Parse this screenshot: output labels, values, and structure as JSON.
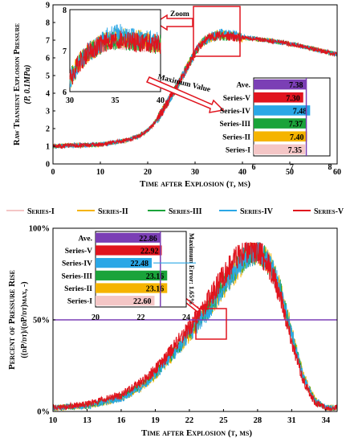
{
  "colors": {
    "series1": "#f4c6c6",
    "series2": "#f5b400",
    "series3": "#1aa33a",
    "series4": "#2aa7e6",
    "series5": "#e0141e",
    "ave": "#7b3fb5",
    "purple_line": "#7b3fb5"
  },
  "legend": {
    "items": [
      {
        "label": "Series-I",
        "color": "#f4c6c6"
      },
      {
        "label": "Series-II",
        "color": "#f5b400"
      },
      {
        "label": "Series-III",
        "color": "#1aa33a"
      },
      {
        "label": "Series-IV",
        "color": "#2aa7e6"
      },
      {
        "label": "Series-V",
        "color": "#e0141e"
      }
    ]
  },
  "chart_data": [
    {
      "type": "line",
      "title": "",
      "xlabel": "Time after Explosion (t, ms)",
      "ylabel_line1": "Raw Transient Explosion Pressure",
      "ylabel_line2": "(P, 0.1MPa)",
      "xlim": [
        0,
        60
      ],
      "ylim": [
        0,
        9
      ],
      "xticks": [
        "0",
        "10",
        "20",
        "30",
        "40",
        "50",
        "60"
      ],
      "yticks": [
        "0",
        "1",
        "2",
        "3",
        "4",
        "5",
        "6",
        "7",
        "8",
        "9"
      ],
      "x": [
        0,
        5,
        10,
        15,
        18,
        20,
        22,
        24,
        26,
        28,
        29,
        30,
        31,
        32,
        33,
        34,
        35,
        36,
        38,
        40,
        45,
        50,
        55,
        60
      ],
      "series": [
        {
          "values": [
            1.0,
            1.05,
            1.1,
            1.3,
            1.55,
            1.9,
            2.5,
            3.4,
            4.3,
            5.3,
            5.8,
            6.3,
            6.7,
            6.95,
            7.1,
            7.2,
            7.25,
            7.25,
            7.2,
            7.15,
            7.0,
            6.8,
            6.5,
            6.2
          ]
        },
        {
          "values": [
            1.0,
            1.05,
            1.1,
            1.3,
            1.55,
            1.9,
            2.5,
            3.4,
            4.3,
            5.3,
            5.8,
            6.3,
            6.7,
            6.95,
            7.1,
            7.25,
            7.3,
            7.3,
            7.25,
            7.15,
            7.0,
            6.8,
            6.5,
            6.2
          ]
        },
        {
          "values": [
            1.0,
            1.05,
            1.1,
            1.3,
            1.55,
            1.9,
            2.5,
            3.4,
            4.3,
            5.3,
            5.8,
            6.3,
            6.7,
            6.95,
            7.1,
            7.2,
            7.25,
            7.25,
            7.2,
            7.15,
            7.0,
            6.8,
            6.5,
            6.2
          ]
        },
        {
          "values": [
            1.0,
            1.05,
            1.1,
            1.3,
            1.55,
            1.9,
            2.5,
            3.4,
            4.3,
            5.3,
            5.8,
            6.3,
            6.7,
            6.95,
            7.1,
            7.3,
            7.4,
            7.4,
            7.3,
            7.2,
            7.0,
            6.8,
            6.5,
            6.2
          ]
        },
        {
          "values": [
            1.0,
            1.05,
            1.1,
            1.3,
            1.55,
            1.9,
            2.5,
            3.4,
            4.3,
            5.3,
            5.8,
            6.3,
            6.7,
            6.95,
            7.1,
            7.2,
            7.25,
            7.25,
            7.2,
            7.15,
            7.0,
            6.8,
            6.5,
            6.2
          ]
        }
      ],
      "annotations": {
        "zoom_label": "Zoom",
        "max_label": "Maximum Value"
      },
      "inset_zoom": {
        "xlim": [
          30,
          40
        ],
        "ylim": [
          6,
          8
        ],
        "xticks": [
          "30",
          "35",
          "40"
        ],
        "yticks": [
          "6",
          "7",
          "8"
        ]
      },
      "inset_bars": {
        "type": "bar",
        "xlim": [
          6,
          8
        ],
        "xticks": [
          "6",
          "7",
          "8"
        ],
        "categories": [
          "Ave.",
          "Series-V",
          "Series-IV",
          "Series-III",
          "Series-II",
          "Series-I"
        ],
        "values": [
          7.38,
          7.3,
          7.48,
          7.37,
          7.4,
          7.35
        ],
        "labels": [
          "7.38",
          "7.30",
          "7.48",
          "7.37",
          "7.40",
          "7.35"
        ]
      }
    },
    {
      "type": "line",
      "title": "",
      "xlabel": "Time after Explosion (t, ms)",
      "ylabel_line1": "Percent of Pressure Rise",
      "ylabel_line2": "((dP/dt)/(dP/dt)max, -)",
      "xlim": [
        10,
        35
      ],
      "ylim": [
        0,
        100
      ],
      "xticks": [
        "10",
        "13",
        "16",
        "19",
        "22",
        "25",
        "28",
        "31",
        "34"
      ],
      "yticks": [
        "0%",
        "50%",
        "100%"
      ],
      "reference_line_y": 50,
      "x": [
        10,
        13,
        16,
        18,
        19,
        20,
        21,
        22,
        23,
        24,
        25,
        26,
        27,
        28,
        29,
        30,
        31,
        32,
        33,
        34
      ],
      "series": [
        {
          "values": [
            2,
            3,
            8,
            16,
            22,
            29,
            36,
            44,
            52,
            60,
            70,
            80,
            86,
            88,
            80,
            65,
            40,
            18,
            6,
            2
          ]
        },
        {
          "values": [
            2,
            3,
            7,
            14,
            20,
            27,
            34,
            42,
            50,
            58,
            66,
            76,
            84,
            88,
            82,
            68,
            44,
            20,
            7,
            2
          ]
        },
        {
          "values": [
            2,
            3,
            8,
            15,
            21,
            28,
            35,
            43,
            51,
            59,
            68,
            78,
            85,
            88,
            81,
            66,
            42,
            19,
            6,
            2
          ]
        },
        {
          "values": [
            2,
            3,
            7,
            14,
            20,
            27,
            34,
            42,
            50,
            58,
            67,
            77,
            85,
            88,
            82,
            67,
            43,
            19,
            6,
            2
          ]
        },
        {
          "values": [
            2,
            4,
            9,
            17,
            23,
            30,
            38,
            46,
            55,
            64,
            74,
            83,
            88,
            88,
            79,
            63,
            38,
            17,
            5,
            2
          ]
        }
      ],
      "inset_bars": {
        "type": "bar",
        "xlim": [
          20,
          24
        ],
        "xticks": [
          "20",
          "22",
          "24"
        ],
        "categories": [
          "Ave.",
          "Series-V",
          "Series-IV",
          "Series-III",
          "Series-II",
          "Series-I"
        ],
        "values": [
          22.86,
          22.92,
          22.48,
          23.16,
          23.16,
          22.6
        ],
        "labels": [
          "22.86",
          "22.92",
          "22.48",
          "23.16",
          "23.16",
          "22.60"
        ],
        "error_label": "Maximum Error: 1.65%"
      }
    }
  ]
}
